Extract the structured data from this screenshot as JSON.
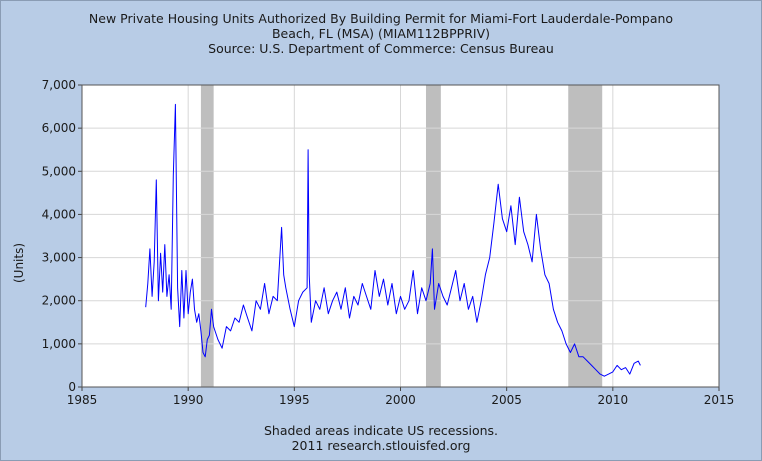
{
  "header": {
    "title_line1": "New Private Housing Units Authorized By Building Permit for Miami-Fort Lauderdale-Pompano",
    "title_line2": "Beach, FL (MSA) (MIAM112BPPRIV)",
    "source": "Source: U.S. Department of Commerce: Census Bureau"
  },
  "footer": {
    "note": "Shaded areas indicate US recessions.",
    "credit": "2011 research.stlouisfed.org"
  },
  "colors": {
    "background": "#b8cce6",
    "plot_background": "#ffffff",
    "series": "#0000ff",
    "recession": "#bebebe",
    "grid": "#d7d7d7"
  },
  "chart_data": {
    "type": "line",
    "title": "New Private Housing Units Authorized By Building Permit for Miami-Fort Lauderdale-Pompano Beach, FL (MSA) (MIAM112BPPRIV)",
    "xlabel": "",
    "ylabel": "(Units)",
    "xlim": [
      1985,
      2015
    ],
    "ylim": [
      0,
      7000
    ],
    "x_ticks": [
      1985,
      1990,
      1995,
      2000,
      2005,
      2010,
      2015
    ],
    "y_ticks": [
      0,
      1000,
      2000,
      3000,
      4000,
      5000,
      6000,
      7000
    ],
    "y_tick_labels": [
      "0",
      "1,000",
      "2,000",
      "3,000",
      "4,000",
      "5,000",
      "6,000",
      "7,000"
    ],
    "grid": true,
    "recessions": [
      [
        1990.6,
        1991.2
      ],
      [
        2001.2,
        2001.9
      ],
      [
        2007.9,
        2009.5
      ]
    ],
    "series": [
      {
        "x": [
          1988.0,
          1988.1,
          1988.2,
          1988.3,
          1988.4,
          1988.5,
          1988.6,
          1988.7,
          1988.8,
          1988.9,
          1989.0,
          1989.1,
          1989.2,
          1989.3,
          1989.4,
          1989.5,
          1989.6,
          1989.7,
          1989.8,
          1989.9,
          1990.0,
          1990.1,
          1990.2,
          1990.3,
          1990.4,
          1990.5,
          1990.6,
          1990.7,
          1990.8,
          1990.9,
          1991.0,
          1991.1,
          1991.2,
          1991.4,
          1991.6,
          1991.8,
          1992.0,
          1992.2,
          1992.4,
          1992.6,
          1992.8,
          1993.0,
          1993.2,
          1993.4,
          1993.6,
          1993.8,
          1994.0,
          1994.2,
          1994.4,
          1994.5,
          1994.6,
          1994.8,
          1995.0,
          1995.2,
          1995.4,
          1995.6,
          1995.65,
          1995.7,
          1995.8,
          1996.0,
          1996.2,
          1996.4,
          1996.6,
          1996.8,
          1997.0,
          1997.2,
          1997.4,
          1997.6,
          1997.8,
          1998.0,
          1998.2,
          1998.4,
          1998.6,
          1998.8,
          1999.0,
          1999.2,
          1999.4,
          1999.6,
          1999.8,
          2000.0,
          2000.2,
          2000.4,
          2000.6,
          2000.8,
          2001.0,
          2001.2,
          2001.4,
          2001.5,
          2001.6,
          2001.8,
          2002.0,
          2002.2,
          2002.4,
          2002.6,
          2002.8,
          2003.0,
          2003.2,
          2003.4,
          2003.6,
          2003.8,
          2004.0,
          2004.2,
          2004.4,
          2004.6,
          2004.8,
          2005.0,
          2005.2,
          2005.4,
          2005.6,
          2005.8,
          2006.0,
          2006.2,
          2006.4,
          2006.6,
          2006.8,
          2007.0,
          2007.2,
          2007.4,
          2007.6,
          2007.8,
          2008.0,
          2008.2,
          2008.4,
          2008.6,
          2008.8,
          2009.0,
          2009.2,
          2009.4,
          2009.6,
          2009.8,
          2010.0,
          2010.2,
          2010.4,
          2010.6,
          2010.8,
          2011.0,
          2011.2,
          2011.3
        ],
        "y": [
          1850,
          2400,
          3200,
          2100,
          2900,
          4800,
          2000,
          3100,
          2200,
          3300,
          2100,
          2600,
          1800,
          4900,
          6550,
          2300,
          1400,
          2700,
          1600,
          2700,
          1700,
          2200,
          2500,
          1800,
          1500,
          1700,
          1300,
          800,
          700,
          1100,
          1200,
          1800,
          1400,
          1100,
          900,
          1400,
          1300,
          1600,
          1500,
          1900,
          1600,
          1300,
          2000,
          1800,
          2400,
          1700,
          2100,
          2000,
          3700,
          2600,
          2300,
          1800,
          1400,
          2000,
          2200,
          2300,
          5500,
          2600,
          1500,
          2000,
          1800,
          2300,
          1700,
          2000,
          2200,
          1800,
          2300,
          1600,
          2100,
          1900,
          2400,
          2100,
          1800,
          2700,
          2100,
          2500,
          1900,
          2400,
          1700,
          2100,
          1800,
          2000,
          2700,
          1700,
          2300,
          2000,
          2400,
          3200,
          1800,
          2400,
          2100,
          1900,
          2300,
          2700,
          2000,
          2400,
          1800,
          2100,
          1500,
          2000,
          2600,
          3000,
          3800,
          4700,
          3900,
          3600,
          4200,
          3300,
          4400,
          3600,
          3300,
          2900,
          4000,
          3200,
          2600,
          2400,
          1800,
          1500,
          1300,
          1000,
          800,
          1000,
          700,
          700,
          600,
          500,
          400,
          300,
          250,
          300,
          350,
          500,
          400,
          450,
          300,
          550,
          600,
          500
        ]
      }
    ]
  }
}
